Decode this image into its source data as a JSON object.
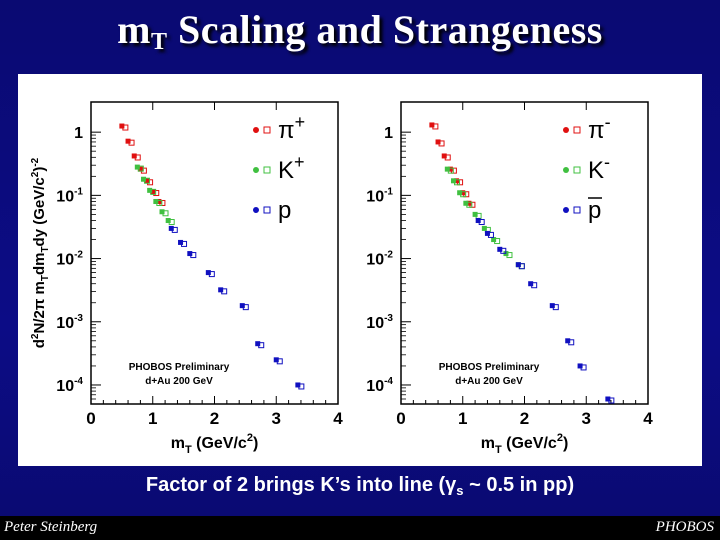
{
  "title": {
    "main": "m",
    "sub": "T",
    "rest": " Scaling and Strangeness"
  },
  "caption": {
    "before": "Factor of 2 brings K’s into line (",
    "gamma": "γ",
    "sub": "s",
    "after": " ~ 0.5 in pp)"
  },
  "footer": {
    "left": "Peter Steinberg",
    "right": "PHOBOS"
  },
  "colors": {
    "pi": "#e01010",
    "K": "#40c040",
    "p": "#1010c0",
    "slide_bg": "#0b0b7a"
  },
  "chart_data": [
    {
      "type": "scatter",
      "ylabel": "d²N/2π mTdmTdy (GeV/c²)⁻²",
      "xlabel": "mT (GeV/c²)",
      "xlim": [
        0,
        4
      ],
      "ylim": [
        5e-05,
        3
      ],
      "yscale": "log",
      "x_ticks": [
        "0",
        "1",
        "2",
        "3",
        "4"
      ],
      "y_ticks": [
        "1",
        "10⁻¹",
        "10⁻²",
        "10⁻³",
        "10⁻⁴"
      ],
      "annotation": [
        "PHOBOS Preliminary",
        "d+Au 200 GeV"
      ],
      "legend": [
        {
          "main": "π",
          "sup": "+",
          "color": "#e01010"
        },
        {
          "main": "K",
          "sup": "+",
          "color": "#40c040"
        },
        {
          "main": "p",
          "sup": "",
          "color": "#1010c0"
        }
      ],
      "series": [
        {
          "name": "π+",
          "color": "#e01010",
          "x": [
            0.5,
            0.6,
            0.7,
            0.8,
            0.9,
            1.0,
            1.1
          ],
          "y": [
            1.25,
            0.72,
            0.42,
            0.26,
            0.17,
            0.115,
            0.08
          ]
        },
        {
          "name": "K+",
          "color": "#40c040",
          "x": [
            0.75,
            0.85,
            0.95,
            1.05,
            1.15,
            1.25
          ],
          "y": [
            0.28,
            0.18,
            0.12,
            0.08,
            0.055,
            0.04
          ]
        },
        {
          "name": "p",
          "color": "#1010c0",
          "x": [
            1.3,
            1.45,
            1.6,
            1.9,
            2.1,
            2.45,
            2.7,
            3.0,
            3.35
          ],
          "y": [
            0.03,
            0.018,
            0.012,
            0.006,
            0.0032,
            0.0018,
            0.00045,
            0.00025,
            0.0001
          ]
        }
      ]
    },
    {
      "type": "scatter",
      "xlabel": "mT (GeV/c²)",
      "xlim": [
        0,
        4
      ],
      "ylim": [
        5e-05,
        3
      ],
      "yscale": "log",
      "x_ticks": [
        "0",
        "1",
        "2",
        "3",
        "4"
      ],
      "y_ticks": [
        "1",
        "10⁻¹",
        "10⁻²",
        "10⁻³",
        "10⁻⁴"
      ],
      "annotation": [
        "PHOBOS Preliminary",
        "d+Au 200 GeV"
      ],
      "legend": [
        {
          "main": "π",
          "sup": "-",
          "color": "#e01010"
        },
        {
          "main": "K",
          "sup": "-",
          "color": "#40c040"
        },
        {
          "main": "p",
          "sup": "",
          "color": "#1010c0",
          "overline": true
        }
      ],
      "series": [
        {
          "name": "π-",
          "color": "#e01010",
          "x": [
            0.5,
            0.6,
            0.7,
            0.8,
            0.9,
            1.0,
            1.1
          ],
          "y": [
            1.3,
            0.7,
            0.42,
            0.26,
            0.17,
            0.11,
            0.075
          ]
        },
        {
          "name": "K-",
          "color": "#40c040",
          "x": [
            0.75,
            0.85,
            0.95,
            1.05,
            1.2,
            1.35,
            1.5,
            1.7,
            1.9
          ],
          "y": [
            0.26,
            0.17,
            0.11,
            0.075,
            0.05,
            0.03,
            0.02,
            0.012,
            0.008
          ]
        },
        {
          "name": "pbar",
          "color": "#1010c0",
          "x": [
            1.25,
            1.4,
            1.6,
            1.9,
            2.1,
            2.45,
            2.7,
            2.9,
            3.35
          ],
          "y": [
            0.04,
            0.025,
            0.014,
            0.008,
            0.004,
            0.0018,
            0.0005,
            0.0002,
            6e-05
          ]
        }
      ]
    }
  ]
}
